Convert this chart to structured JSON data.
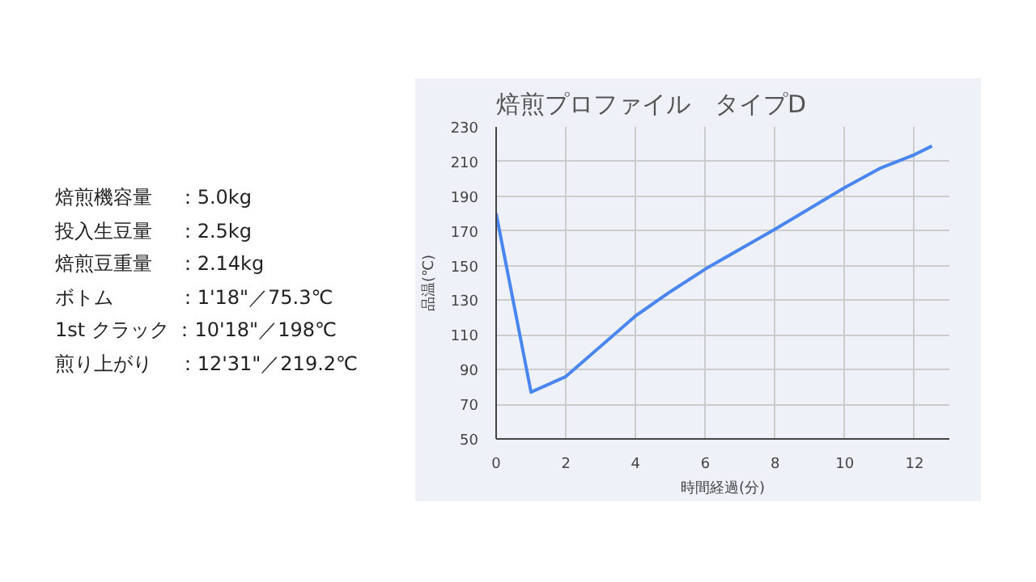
{
  "chart_data": {
    "type": "line",
    "title": "焙煎プロファイル　タイプD",
    "xlabel": "時間経過(分)",
    "ylabel": "品温(℃)",
    "x": [
      0,
      1,
      2,
      4,
      5,
      6,
      8,
      10,
      11,
      12,
      12.5
    ],
    "series": [
      {
        "color": "#4a86f0",
        "values": [
          180,
          77,
          86,
          121,
          135,
          148,
          171,
          195,
          206,
          214,
          219
        ]
      }
    ],
    "xlim": [
      0,
      13
    ],
    "xticks": [
      0,
      2,
      4,
      6,
      8,
      10,
      12
    ],
    "ylim": [
      50,
      230
    ],
    "yticks": [
      50,
      70,
      90,
      110,
      130,
      150,
      170,
      190,
      210,
      230
    ],
    "grid": true,
    "line_style": "solid",
    "annotations": [
      "焙煎機容量　 ：5.0kg",
      "投入生豆量　 ：2.5kg",
      "焙煎豆重量　 ：2.14kg",
      "ボトム　　　 ：1'18\"／75.3℃",
      "1st クラック ：10'18\"／198℃",
      "煎り上がり　 ：12'31\"／219.2℃"
    ]
  }
}
